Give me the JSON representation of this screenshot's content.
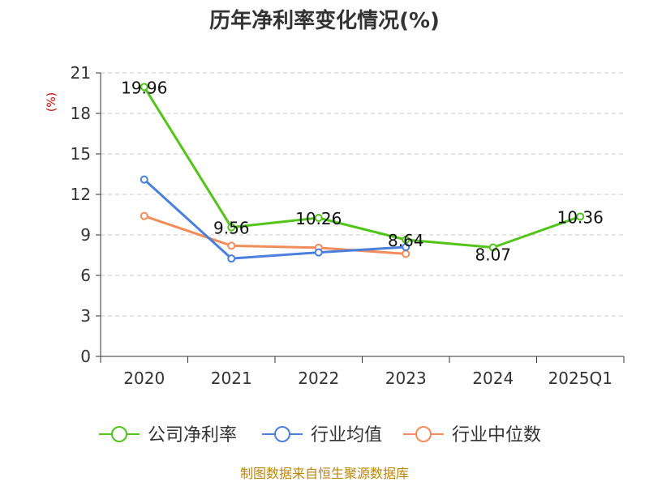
{
  "chart_data": {
    "type": "line",
    "title": "历年净利率变化情况(%)",
    "ylabel": "(%)",
    "xlabel": "",
    "categories": [
      "2020",
      "2021",
      "2022",
      "2023",
      "2024",
      "2025Q1"
    ],
    "ylim": [
      0,
      21
    ],
    "yticks": [
      0,
      3,
      6,
      9,
      12,
      15,
      18,
      21
    ],
    "grid": true,
    "legend_position": "bottom",
    "series": [
      {
        "name": "公司净利率",
        "color": "#52c41a",
        "values": [
          19.96,
          9.56,
          10.26,
          8.64,
          8.07,
          10.36
        ],
        "labels": [
          "19.96",
          "9.56",
          "10.26",
          "8.64",
          "8.07",
          "10.36"
        ]
      },
      {
        "name": "行业均值",
        "color": "#4a7fdb",
        "values": [
          13.1,
          7.25,
          7.7,
          8.1,
          null,
          null
        ]
      },
      {
        "name": "行业中位数",
        "color": "#f28c5a",
        "values": [
          10.4,
          8.2,
          8.05,
          7.6,
          null,
          null
        ]
      }
    ],
    "source": "制图数据来自恒生聚源数据库"
  }
}
